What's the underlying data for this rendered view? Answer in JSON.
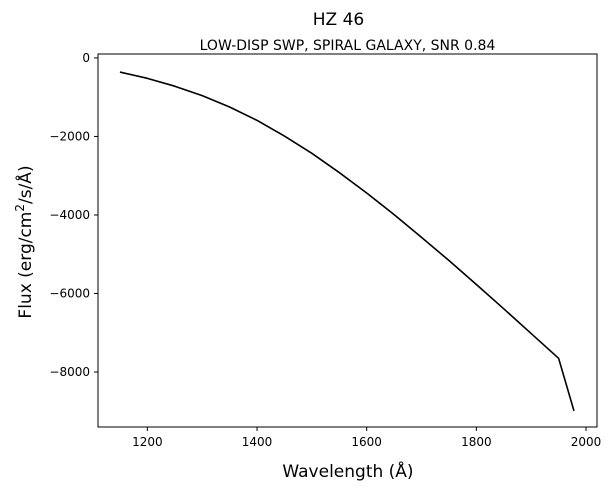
{
  "chart_data": {
    "type": "line",
    "title": "HZ 46",
    "subtitle": "LOW-DISP SWP, SPIRAL GALAXY, SNR 0.84",
    "xlabel": "Wavelength (Å)",
    "ylabel_parts": {
      "pre": "Flux (erg/cm",
      "sup": "2",
      "post": "/s/Å)"
    },
    "xlim": [
      1110,
      2020
    ],
    "ylim": [
      -9400,
      100
    ],
    "x_ticks": [
      1200,
      1400,
      1600,
      1800,
      2000
    ],
    "y_ticks": [
      0,
      -2000,
      -4000,
      -6000,
      -8000
    ],
    "x_tick_labels": [
      "1200",
      "1400",
      "1600",
      "1800",
      "2000"
    ],
    "y_tick_labels": [
      "0",
      "−2000",
      "−4000",
      "−6000",
      "−8000"
    ],
    "grid": false,
    "line_color": "#000000",
    "series": [
      {
        "x": [
          1150,
          1200,
          1250,
          1300,
          1350,
          1400,
          1450,
          1500,
          1550,
          1600,
          1650,
          1700,
          1750,
          1800,
          1850,
          1900,
          1950,
          1978
        ],
        "y": [
          -360,
          -520,
          -720,
          -960,
          -1250,
          -1590,
          -1990,
          -2430,
          -2920,
          -3440,
          -3990,
          -4570,
          -5160,
          -5770,
          -6390,
          -7020,
          -7650,
          -8990
        ]
      }
    ]
  }
}
